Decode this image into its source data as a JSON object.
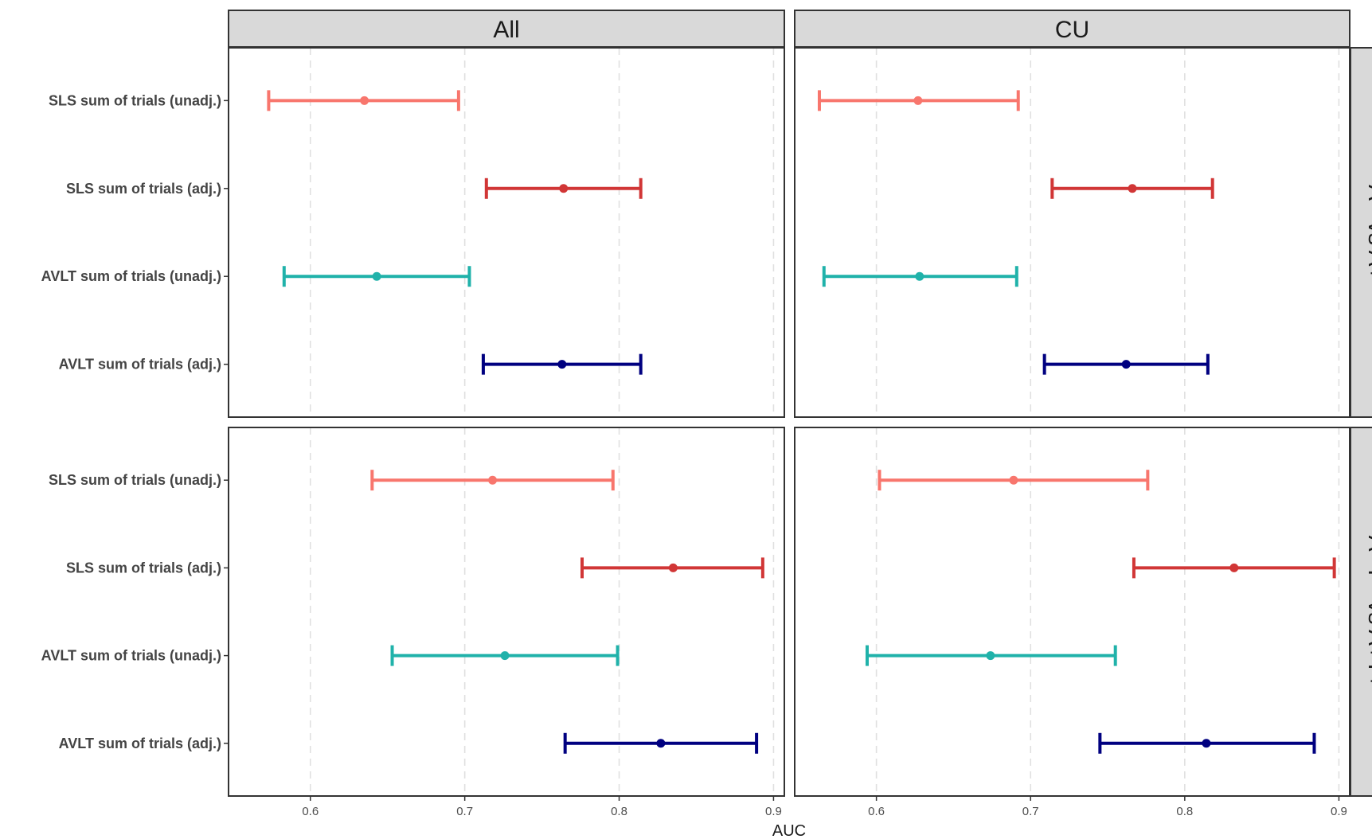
{
  "chart_data": {
    "type": "errorbar",
    "xlabel": "AUC",
    "ylabel": "",
    "xlim": [
      0.547,
      0.907
    ],
    "x_ticks": [
      "0.6",
      "0.7",
      "0.8",
      "0.9"
    ],
    "grid": "vertical dashed major gridlines",
    "columns": [
      "All",
      "CU"
    ],
    "rows": [
      "A− vs A+",
      "A−T− vs A+T+"
    ],
    "measures": [
      {
        "name": "SLS sum of trials (unadj.)",
        "color": "#F8766D"
      },
      {
        "name": "SLS sum of trials (adj.)",
        "color": "#D13636"
      },
      {
        "name": "AVLT sum of trials (unadj.)",
        "color": "#20B2AA"
      },
      {
        "name": "AVLT sum of trials (adj.)",
        "color": "#000080"
      }
    ],
    "panels": [
      {
        "column": "All",
        "row": "A− vs A+",
        "estimates": [
          {
            "measure": "SLS sum of trials (unadj.)",
            "auc": 0.635,
            "lower": 0.573,
            "upper": 0.696
          },
          {
            "measure": "SLS sum of trials (adj.)",
            "auc": 0.764,
            "lower": 0.714,
            "upper": 0.814
          },
          {
            "measure": "AVLT sum of trials (unadj.)",
            "auc": 0.643,
            "lower": 0.583,
            "upper": 0.703
          },
          {
            "measure": "AVLT sum of trials (adj.)",
            "auc": 0.763,
            "lower": 0.712,
            "upper": 0.814
          }
        ]
      },
      {
        "column": "CU",
        "row": "A− vs A+",
        "estimates": [
          {
            "measure": "SLS sum of trials (unadj.)",
            "auc": 0.627,
            "lower": 0.563,
            "upper": 0.692
          },
          {
            "measure": "SLS sum of trials (adj.)",
            "auc": 0.766,
            "lower": 0.714,
            "upper": 0.818
          },
          {
            "measure": "AVLT sum of trials (unadj.)",
            "auc": 0.628,
            "lower": 0.566,
            "upper": 0.691
          },
          {
            "measure": "AVLT sum of trials (adj.)",
            "auc": 0.762,
            "lower": 0.709,
            "upper": 0.815
          }
        ]
      },
      {
        "column": "All",
        "row": "A−T− vs A+T+",
        "estimates": [
          {
            "measure": "SLS sum of trials (unadj.)",
            "auc": 0.718,
            "lower": 0.64,
            "upper": 0.796
          },
          {
            "measure": "SLS sum of trials (adj.)",
            "auc": 0.835,
            "lower": 0.776,
            "upper": 0.893
          },
          {
            "measure": "AVLT sum of trials (unadj.)",
            "auc": 0.726,
            "lower": 0.653,
            "upper": 0.799
          },
          {
            "measure": "AVLT sum of trials (adj.)",
            "auc": 0.827,
            "lower": 0.765,
            "upper": 0.889
          }
        ]
      },
      {
        "column": "CU",
        "row": "A−T− vs A+T+",
        "estimates": [
          {
            "measure": "SLS sum of trials (unadj.)",
            "auc": 0.689,
            "lower": 0.602,
            "upper": 0.776
          },
          {
            "measure": "SLS sum of trials (adj.)",
            "auc": 0.832,
            "lower": 0.767,
            "upper": 0.897
          },
          {
            "measure": "AVLT sum of trials (unadj.)",
            "auc": 0.674,
            "lower": 0.594,
            "upper": 0.755
          },
          {
            "measure": "AVLT sum of trials (adj.)",
            "auc": 0.814,
            "lower": 0.745,
            "upper": 0.884
          }
        ]
      }
    ]
  }
}
